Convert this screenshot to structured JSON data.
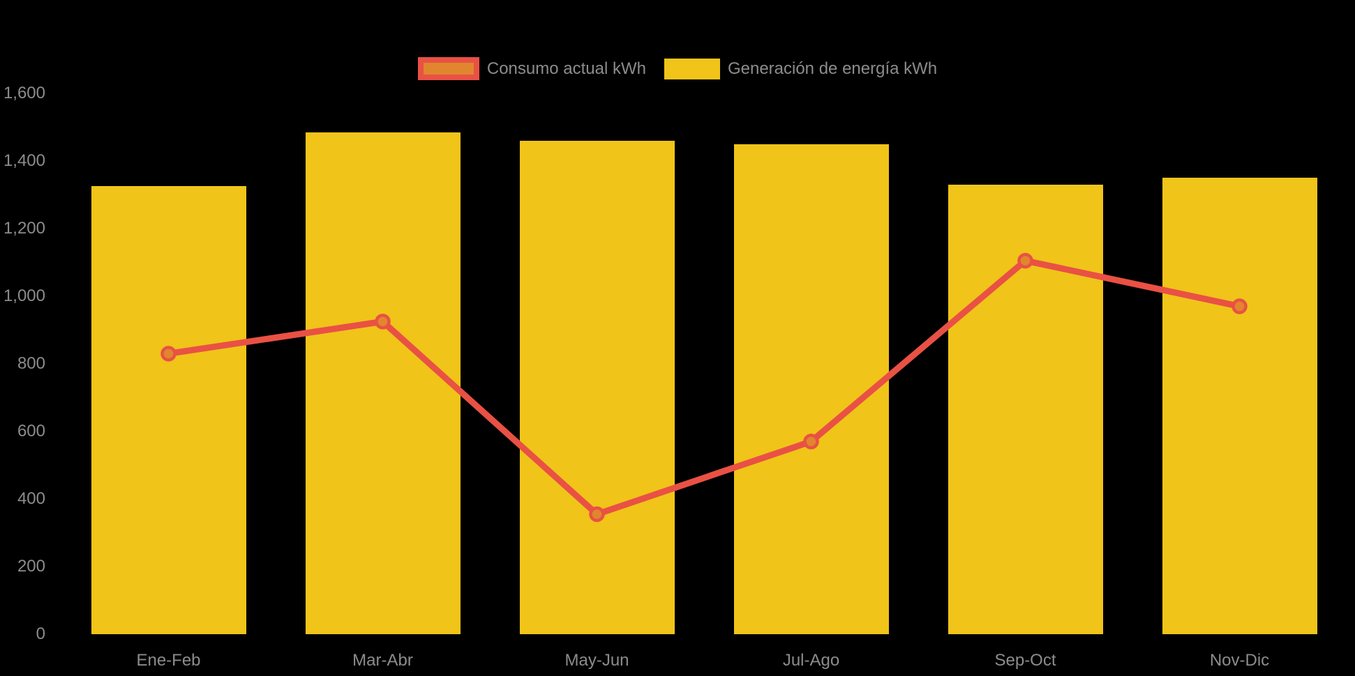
{
  "chart_data": {
    "type": "bar",
    "title": "",
    "categories": [
      "Ene-Feb",
      "Mar-Abr",
      "May-Jun",
      "Jul-Ago",
      "Sep-Oct",
      "Nov-Dic"
    ],
    "series": [
      {
        "name": "Consumo actual kWh",
        "render": "line",
        "color": "#E95144",
        "point_fill": "#E1862E",
        "values": [
          830,
          925,
          355,
          570,
          1105,
          970
        ]
      },
      {
        "name": "Generación de energía kWh",
        "render": "bar",
        "color": "#F0C419",
        "values": [
          1325,
          1485,
          1460,
          1450,
          1330,
          1350
        ]
      }
    ],
    "xlabel": "",
    "ylabel": "",
    "ylim": [
      0,
      1600
    ],
    "ytick_step": 200,
    "ytick_labels": [
      "0",
      "200",
      "400",
      "600",
      "800",
      "1,000",
      "1,200",
      "1,400",
      "1,600"
    ],
    "grid": false,
    "legend_position": "top-center",
    "background_color": "#000000",
    "axis_label_color": "#8C8C8C"
  }
}
